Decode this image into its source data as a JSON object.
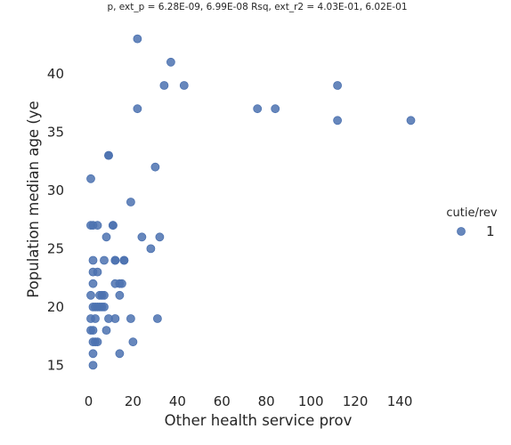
{
  "chart_data": {
    "type": "scatter",
    "title": "p, ext_p = 6.28E-09, 6.99E-08 Rsq, ext_r2 = 4.03E-01, 6.02E-01",
    "xlabel": "Other health service prov",
    "ylabel": "Population median age (ye",
    "xlim": [
      -7,
      158
    ],
    "ylim": [
      13.5,
      44.5
    ],
    "xticks": [
      "0",
      "20",
      "40",
      "60",
      "80",
      "100",
      "120",
      "140"
    ],
    "xtick_values": [
      0,
      20,
      40,
      60,
      80,
      100,
      120,
      140
    ],
    "yticks": [
      "15",
      "20",
      "25",
      "30",
      "35",
      "40"
    ],
    "ytick_values": [
      15,
      20,
      25,
      30,
      35,
      40
    ],
    "grid": false,
    "legend": {
      "title": "cutie/rev",
      "entries": [
        "1"
      ],
      "placement": "right"
    },
    "marker_color": "#4c72b0",
    "series": [
      {
        "name": "1",
        "points": [
          [
            22,
            43
          ],
          [
            37,
            41
          ],
          [
            34,
            39
          ],
          [
            43,
            39
          ],
          [
            112,
            39
          ],
          [
            22,
            37
          ],
          [
            76,
            37
          ],
          [
            84,
            37
          ],
          [
            112,
            36
          ],
          [
            145,
            36
          ],
          [
            9,
            33
          ],
          [
            9,
            33
          ],
          [
            30,
            32
          ],
          [
            1,
            31
          ],
          [
            19,
            29
          ],
          [
            1,
            27
          ],
          [
            2,
            27
          ],
          [
            4,
            27
          ],
          [
            11,
            27
          ],
          [
            11,
            27
          ],
          [
            8,
            26
          ],
          [
            24,
            26
          ],
          [
            32,
            26
          ],
          [
            28,
            25
          ],
          [
            2,
            24
          ],
          [
            7,
            24
          ],
          [
            12,
            24
          ],
          [
            12,
            24
          ],
          [
            16,
            24
          ],
          [
            16,
            24
          ],
          [
            2,
            23
          ],
          [
            4,
            23
          ],
          [
            2,
            22
          ],
          [
            12,
            22
          ],
          [
            14,
            22
          ],
          [
            15,
            22
          ],
          [
            1,
            21
          ],
          [
            5,
            21
          ],
          [
            6,
            21
          ],
          [
            7,
            21
          ],
          [
            14,
            21
          ],
          [
            2,
            20
          ],
          [
            3,
            20
          ],
          [
            4,
            20
          ],
          [
            5,
            20
          ],
          [
            6,
            20
          ],
          [
            7,
            20
          ],
          [
            1,
            19
          ],
          [
            3,
            19
          ],
          [
            9,
            19
          ],
          [
            12,
            19
          ],
          [
            19,
            19
          ],
          [
            31,
            19
          ],
          [
            1,
            18
          ],
          [
            2,
            18
          ],
          [
            8,
            18
          ],
          [
            2,
            17
          ],
          [
            3,
            17
          ],
          [
            4,
            17
          ],
          [
            20,
            17
          ],
          [
            2,
            16
          ],
          [
            14,
            16
          ],
          [
            2,
            15
          ]
        ]
      }
    ]
  }
}
